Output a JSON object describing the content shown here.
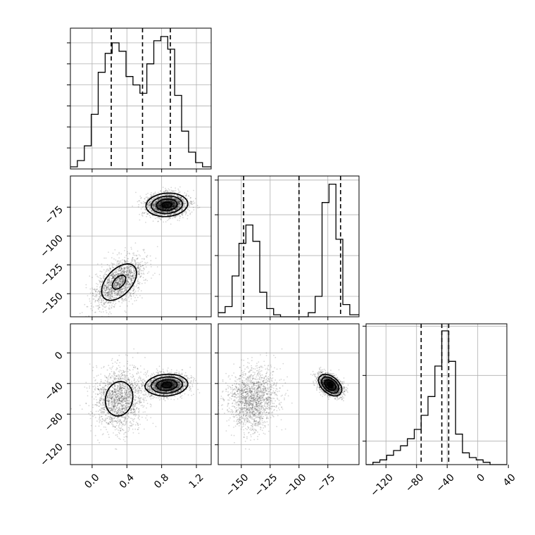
{
  "chart_data": {
    "type": "corner",
    "params": [
      {
        "id": "p0",
        "range": [
          -0.25,
          1.37
        ],
        "ticks": [
          0.0,
          0.4,
          0.8,
          1.2
        ],
        "tick_labels": [
          "0.0",
          "0.4",
          "0.8",
          "1.2"
        ]
      },
      {
        "id": "p1",
        "range": [
          -170,
          -48
        ],
        "ticks": [
          -150,
          -125,
          -100,
          -75
        ],
        "tick_labels": [
          "−150",
          "−125",
          "−100",
          "−75"
        ]
      },
      {
        "id": "p2",
        "range": [
          -146,
          38
        ],
        "ticks": [
          -120,
          -80,
          -40,
          0,
          40
        ],
        "tick_labels": [
          "−120",
          "−80",
          "−40",
          "0",
          "40"
        ]
      }
    ],
    "grid": true,
    "histograms": [
      {
        "param": "p0",
        "bin_edges": [
          -0.25,
          -0.17,
          -0.09,
          -0.01,
          0.07,
          0.15,
          0.23,
          0.31,
          0.39,
          0.47,
          0.55,
          0.63,
          0.71,
          0.79,
          0.87,
          0.95,
          1.03,
          1.11,
          1.19,
          1.27,
          1.37
        ],
        "counts": [
          0.01,
          0.04,
          0.11,
          0.26,
          0.46,
          0.55,
          0.6,
          0.56,
          0.44,
          0.4,
          0.36,
          0.5,
          0.61,
          0.63,
          0.57,
          0.35,
          0.18,
          0.08,
          0.03,
          0.01
        ],
        "ymax": 0.67,
        "ygrid": [
          0.1,
          0.2,
          0.3,
          0.4,
          0.5,
          0.6
        ],
        "quantile_lines": [
          0.22,
          0.58,
          0.9
        ]
      },
      {
        "param": "p1",
        "bin_edges": [
          -170,
          -164,
          -158,
          -152,
          -146,
          -140,
          -134,
          -128,
          -122,
          -116,
          -110,
          -104,
          -98,
          -92,
          -86,
          -80,
          -74,
          -68,
          -62,
          -56,
          -48
        ],
        "counts": [
          0.02,
          0.05,
          0.2,
          0.36,
          0.45,
          0.37,
          0.12,
          0.04,
          0.01,
          0.0,
          0.0,
          0.0,
          0.0,
          0.02,
          0.1,
          0.56,
          0.65,
          0.38,
          0.06,
          0.01
        ],
        "ymax": 0.69,
        "ygrid": [
          0.1,
          0.3,
          0.5,
          0.67
        ],
        "quantile_lines": [
          -148,
          -100,
          -64
        ]
      },
      {
        "param": "p2",
        "bin_edges": [
          -146,
          -137,
          -128,
          -119,
          -110,
          -101,
          -92,
          -83,
          -74,
          -65,
          -56,
          -47,
          -38,
          -29,
          -20,
          -11,
          -2,
          7,
          16,
          25,
          38
        ],
        "counts": [
          0.0,
          0.01,
          0.02,
          0.04,
          0.06,
          0.08,
          0.11,
          0.15,
          0.21,
          0.29,
          0.42,
          0.57,
          0.44,
          0.13,
          0.05,
          0.03,
          0.02,
          0.01,
          0.0,
          0.0
        ],
        "ymax": 0.6,
        "ygrid": [
          0.1,
          0.38,
          0.59
        ],
        "quantile_lines": [
          -74,
          -47,
          -38
        ]
      }
    ],
    "clusters": [
      {
        "p0": 0.31,
        "p1": -140,
        "p2": -60,
        "s0": 0.14,
        "s1": 11,
        "s2": 20,
        "r01": 0.5,
        "r02": 0.1,
        "r12": 0.05,
        "n": 1600
      },
      {
        "p0": 0.86,
        "p1": -73,
        "p2": -42,
        "s0": 0.12,
        "s1": 5,
        "s2": 7,
        "r01": 0.1,
        "r02": 0.1,
        "r12": -0.45,
        "n": 1900
      }
    ],
    "contour_levels": [
      0.5,
      1.0,
      1.5,
      2.0
    ]
  }
}
